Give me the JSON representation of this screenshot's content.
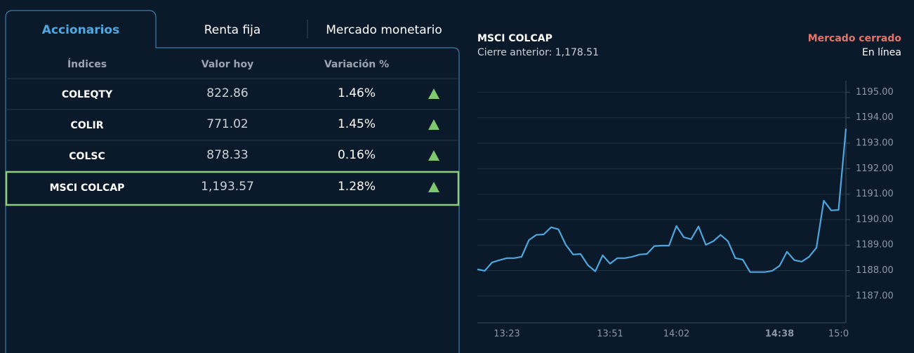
{
  "tabs": [
    "Accionarios",
    "Renta fija",
    "Mercado monetario"
  ],
  "table": {
    "headers": [
      "Índices",
      "Valor hoy",
      "Variación %"
    ],
    "rows": [
      [
        "COLEQTY",
        "822.86",
        "1.46%"
      ],
      [
        "COLIR",
        "771.02",
        "1.45%"
      ],
      [
        "COLSC",
        "878.33",
        "0.16%"
      ],
      [
        "MSCI COLCAP",
        "1,193.57",
        "1.28%"
      ]
    ]
  },
  "status": "Mercado cerrado",
  "connection": "En línea",
  "chart_data": {
    "type": "line",
    "title": "MSCI COLCAP",
    "subtitle": "Cierre anterior: 1,178.51",
    "categories": [
      null,
      null,
      null,
      null,
      "13:23",
      null,
      null,
      null,
      null,
      null,
      null,
      null,
      null,
      null,
      null,
      null,
      null,
      null,
      "13:51",
      null,
      null,
      null,
      null,
      null,
      null,
      null,
      null,
      "14:02",
      null,
      null,
      null,
      null,
      null,
      null,
      null,
      null,
      null,
      null,
      null,
      null,
      null,
      "14:38",
      null,
      null,
      null,
      null,
      null,
      null,
      null,
      "15:0",
      null
    ],
    "values": [
      1188.05,
      1187.99,
      1188.32,
      1188.41,
      1188.49,
      1188.49,
      1188.54,
      1189.2,
      1189.4,
      1189.42,
      1189.7,
      1189.62,
      1189.01,
      1188.63,
      1188.65,
      1188.21,
      1187.97,
      1188.6,
      1188.27,
      1188.49,
      1188.49,
      1188.54,
      1188.63,
      1188.65,
      1188.96,
      1188.98,
      1188.98,
      1189.75,
      1189.31,
      1189.23,
      1189.73,
      1189.01,
      1189.15,
      1189.4,
      1189.15,
      1188.49,
      1188.43,
      1187.94,
      1187.94,
      1187.94,
      1187.99,
      1188.19,
      1188.74,
      1188.41,
      1188.35,
      1188.54,
      1188.9,
      1190.74,
      1190.36,
      1190.38,
      1193.57
    ],
    "color": "#4ea6dc",
    "ylim": [
      1185.95,
      1195.45
    ],
    "yticks": [
      {
        "value": 1187,
        "label": "1187.00"
      },
      {
        "value": 1188,
        "label": "1188.00"
      },
      {
        "value": 1189,
        "label": "1189.00"
      },
      {
        "value": 1190,
        "label": "1190.00"
      },
      {
        "value": 1191,
        "label": "1191.00"
      },
      {
        "value": 1192,
        "label": "1192.00"
      },
      {
        "value": 1193,
        "label": "1193.00"
      },
      {
        "value": 1194,
        "label": "1194.00"
      },
      {
        "value": 1195,
        "label": "1195.00"
      }
    ],
    "grid": true
  }
}
